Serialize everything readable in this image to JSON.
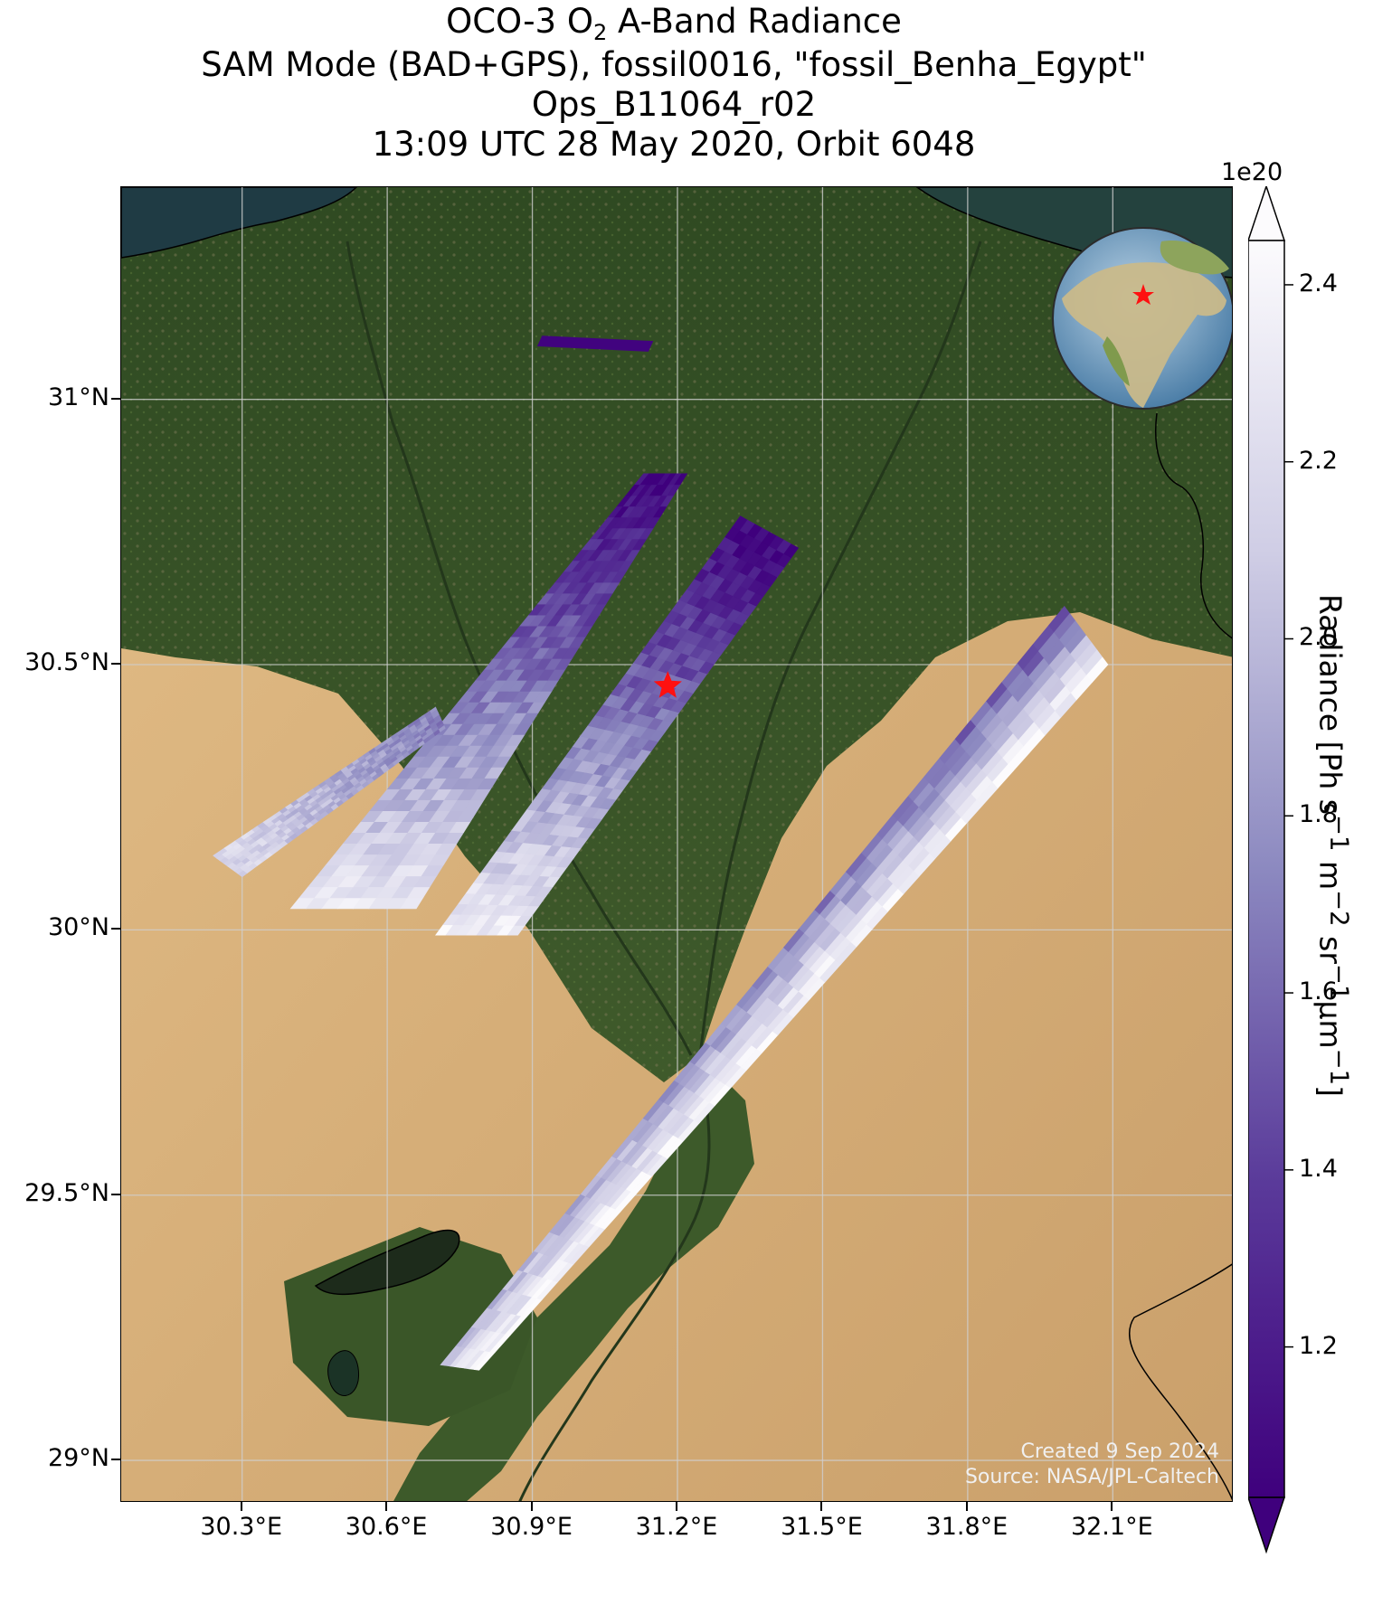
{
  "title": {
    "line1_prefix": "OCO-3 O",
    "line1_sub": "2",
    "line1_suffix": " A-Band Radiance",
    "line2": "SAM Mode (BAD+GPS), fossil0016, \"fossil_Benha_Egypt\"",
    "line3": "Ops_B11064_r02",
    "line4": "13:09 UTC 28 May 2020, Orbit 6048"
  },
  "map": {
    "lon_range": [
      30.05,
      32.35
    ],
    "lat_range": [
      28.92,
      31.4
    ],
    "lat_ticks": [
      {
        "value": 31.0,
        "label": "31°N"
      },
      {
        "value": 30.5,
        "label": "30.5°N"
      },
      {
        "value": 30.0,
        "label": "30°N"
      },
      {
        "value": 29.5,
        "label": "29.5°N"
      },
      {
        "value": 29.0,
        "label": "29°N"
      }
    ],
    "lon_ticks": [
      {
        "value": 30.3,
        "label": "30.3°E"
      },
      {
        "value": 30.6,
        "label": "30.6°E"
      },
      {
        "value": 30.9,
        "label": "30.9°E"
      },
      {
        "value": 31.2,
        "label": "31.2°E"
      },
      {
        "value": 31.5,
        "label": "31.5°E"
      },
      {
        "value": 31.8,
        "label": "31.8°E"
      },
      {
        "value": 32.1,
        "label": "32.1°E"
      }
    ],
    "target": {
      "lon": 31.18,
      "lat": 30.46,
      "marker": "red-star"
    },
    "inset_globe": {
      "marker": "red-star",
      "region": "Egypt"
    },
    "credit_line1": "Created 9 Sep 2024",
    "credit_line2": "Source: NASA/JPL-Caltech",
    "colors": {
      "desert": "#d8b27e",
      "vegetation": "#3e5a2c",
      "sea": "#1f3b44",
      "target": "#ff1010",
      "cmap_low": "#3f007d",
      "cmap_high": "#fcfbfd"
    }
  },
  "colorbar": {
    "exponent": "1e20",
    "label_prefix": "Radiance [Ph s",
    "label": "Radiance [Ph s⁻¹ m⁻² sr⁻¹μm⁻¹]",
    "vmin": 1.03,
    "vmax": 2.45,
    "extend": "both",
    "ticks": [
      {
        "value": 1.2,
        "label": "1.2"
      },
      {
        "value": 1.4,
        "label": "1.4"
      },
      {
        "value": 1.6,
        "label": "1.6"
      },
      {
        "value": 1.8,
        "label": "1.8"
      },
      {
        "value": 2.0,
        "label": "2.0"
      },
      {
        "value": 2.2,
        "label": "2.2"
      },
      {
        "value": 2.4,
        "label": "2.4"
      }
    ]
  },
  "swaths": [
    {
      "name": "swath-far-north",
      "corners": [
        [
          30.92,
          31.12
        ],
        [
          31.15,
          31.11
        ],
        [
          31.14,
          31.09
        ],
        [
          30.91,
          31.1
        ]
      ],
      "radiance": 1.05
    },
    {
      "name": "swath-west-upper",
      "corners": [
        [
          30.4,
          30.04
        ],
        [
          31.13,
          30.86
        ],
        [
          31.22,
          30.86
        ],
        [
          30.66,
          30.04
        ]
      ],
      "radiance_low": 1.06,
      "radiance_high": 2.3
    },
    {
      "name": "swath-west-lower",
      "corners": [
        [
          30.7,
          29.99
        ],
        [
          31.33,
          30.78
        ],
        [
          31.45,
          30.72
        ],
        [
          30.87,
          29.99
        ]
      ],
      "radiance_low": 1.06,
      "radiance_high": 2.35
    },
    {
      "name": "swath-west-edge",
      "corners": [
        [
          30.24,
          30.14
        ],
        [
          30.7,
          30.42
        ],
        [
          30.72,
          30.38
        ],
        [
          30.3,
          30.1
        ]
      ],
      "radiance_low": 1.7,
      "radiance_high": 2.2
    },
    {
      "name": "swath-east",
      "corners": [
        [
          30.71,
          29.18
        ],
        [
          32.0,
          30.61
        ],
        [
          32.09,
          30.5
        ],
        [
          32.08,
          30.32
        ],
        [
          30.79,
          29.17
        ]
      ],
      "radiance_low": 1.4,
      "radiance_high": 2.45
    }
  ]
}
